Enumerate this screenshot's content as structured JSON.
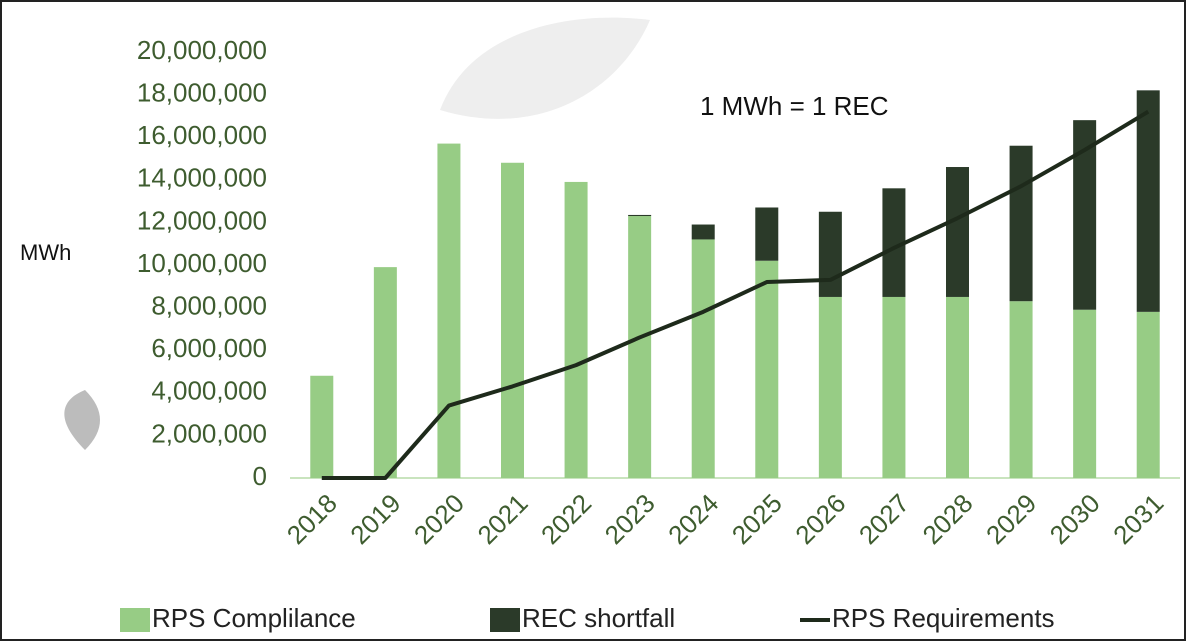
{
  "chart_data": {
    "type": "stacked_bar_line",
    "y_label": "MWh",
    "annotation": "1 MWh = 1 REC",
    "categories": [
      "2018",
      "2019",
      "2020",
      "2021",
      "2022",
      "2023",
      "2024",
      "2025",
      "2026",
      "2027",
      "2028",
      "2029",
      "2030",
      "2031"
    ],
    "series": [
      {
        "name": "RPS Complilance",
        "kind": "bar",
        "color": "#97cc85",
        "values": [
          4800000,
          9900000,
          15700000,
          14800000,
          13900000,
          12300000,
          11200000,
          10200000,
          8500000,
          8500000,
          8500000,
          8300000,
          7900000,
          7800000
        ]
      },
      {
        "name": "REC shortfall",
        "kind": "bar",
        "color": "#2b3a29",
        "values": [
          0,
          0,
          0,
          0,
          0,
          50000,
          700000,
          2500000,
          4000000,
          5100000,
          6100000,
          7300000,
          8900000,
          10400000
        ]
      },
      {
        "name": "RPS Requirements",
        "kind": "line",
        "color": "#1e2a1b",
        "values": [
          0,
          0,
          3400000,
          4300000,
          5300000,
          6600000,
          7800000,
          9200000,
          9300000,
          10800000,
          12200000,
          13700000,
          15400000,
          17200000
        ]
      }
    ],
    "ylim": [
      0,
      20000000
    ],
    "yticks": [
      0,
      {
        "value": 2000000,
        "label": "2,000,000"
      },
      {
        "value": 4000000,
        "label": "4,000,000"
      },
      {
        "value": 6000000,
        "label": "6,000,000"
      },
      {
        "value": 8000000,
        "label": "8,000,000"
      },
      {
        "value": 10000000,
        "label": "10,000,000"
      },
      {
        "value": 12000000,
        "label": "12,000,000"
      },
      {
        "value": 14000000,
        "label": "14,000,000"
      },
      {
        "value": 16000000,
        "label": "16,000,000"
      },
      {
        "value": 18000000,
        "label": "18,000,000"
      },
      {
        "value": 20000000,
        "label": "20,000,000"
      }
    ],
    "legend": "bottom"
  }
}
